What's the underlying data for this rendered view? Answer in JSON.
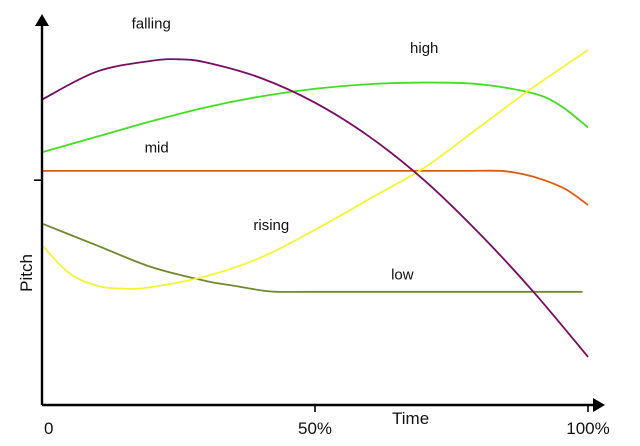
{
  "chart_data": {
    "type": "line",
    "title": "",
    "xlabel": "Time",
    "ylabel": "Pitch",
    "xlim": [
      0,
      100
    ],
    "ylim": [
      0,
      100
    ],
    "x_ticks": [
      {
        "value": 0,
        "label": "0"
      },
      {
        "value": 50,
        "label": "50%"
      },
      {
        "value": 100,
        "label": "100%"
      }
    ],
    "y_ticks": [
      {
        "value": 58,
        "label": ""
      }
    ],
    "grid": false,
    "legend": "none",
    "series": [
      {
        "name": "high",
        "color": "#44dd22",
        "x": [
          0,
          10,
          20,
          30,
          40,
          50,
          60,
          70,
          80,
          90,
          95,
          100
        ],
        "y": [
          67,
          72,
          77,
          81.5,
          85,
          87.5,
          89,
          89.5,
          89,
          86,
          82,
          75
        ]
      },
      {
        "name": "mid",
        "color": "#e05a10",
        "x": [
          0,
          20,
          40,
          60,
          70,
          78,
          84,
          88,
          92,
          96,
          100
        ],
        "y": [
          61,
          61,
          61,
          61,
          61,
          61,
          61,
          60,
          58,
          55,
          50
        ]
      },
      {
        "name": "low",
        "color": "#6f8a2e",
        "x": [
          0,
          10,
          20,
          30,
          35,
          40,
          43,
          50,
          70,
          90,
          99
        ],
        "y": [
          44,
          37,
          30,
          25.5,
          24,
          22.5,
          22,
          22,
          22,
          22,
          22
        ]
      },
      {
        "name": "rising",
        "color": "#f4f436",
        "x": [
          0,
          5,
          10,
          15,
          20,
          30,
          40,
          50,
          60,
          70,
          80,
          90,
          100
        ],
        "y": [
          37,
          28,
          24,
          23,
          23.5,
          27,
          33,
          42,
          52,
          62,
          75,
          88,
          100
        ]
      },
      {
        "name": "falling",
        "color": "#7a0a63",
        "x": [
          0,
          10,
          20,
          25,
          30,
          40,
          50,
          60,
          70,
          80,
          90,
          100
        ],
        "y": [
          84,
          93,
          96.5,
          97,
          96,
          91,
          83,
          72,
          58,
          41,
          22,
          1
        ]
      }
    ],
    "annotations": [
      {
        "text": "falling",
        "x": 20,
        "y": 107
      },
      {
        "text": "high",
        "x": 70,
        "y": 99
      },
      {
        "text": "mid",
        "x": 21,
        "y": 67
      },
      {
        "text": "rising",
        "x": 42,
        "y": 42
      },
      {
        "text": "low",
        "x": 66,
        "y": 26
      }
    ]
  }
}
